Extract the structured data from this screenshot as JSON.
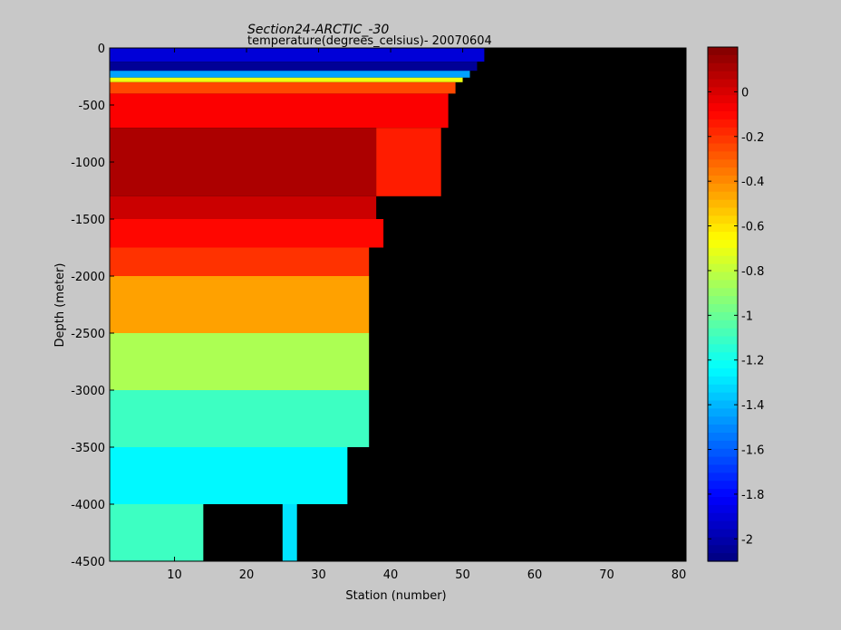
{
  "chart_data": {
    "type": "heatmap",
    "title": "Section24-ARCTIC_-30",
    "subtitle": "temperature(degrees_celsius)- 20070604",
    "xlabel": "Station (number)",
    "ylabel": "Depth (meter)",
    "xlim": [
      1,
      81
    ],
    "ylim": [
      -4500,
      0
    ],
    "x_ticks": [
      10,
      20,
      30,
      40,
      50,
      60,
      70,
      80
    ],
    "y_ticks": [
      0,
      -500,
      -1000,
      -1500,
      -2000,
      -2500,
      -3000,
      -3500,
      -4000,
      -4500
    ],
    "colorbar": {
      "range": [
        -2.1,
        0.2
      ],
      "ticks": [
        0,
        -0.2,
        -0.4,
        -0.6,
        -0.8,
        -1,
        -1.2,
        -1.4,
        -1.6,
        -1.8,
        -2
      ],
      "colormap": "jet"
    },
    "missing_color": "#000000",
    "grid": false,
    "station_bottom_depth": [
      {
        "x_range": [
          1,
          14
        ],
        "bottom": -4500
      },
      {
        "x_range": [
          14,
          25
        ],
        "bottom": -4000
      },
      {
        "x_range": [
          25,
          27
        ],
        "bottom": -4500
      },
      {
        "x_range": [
          27,
          34
        ],
        "bottom": -4000
      },
      {
        "x_range": [
          34,
          37
        ],
        "bottom": -3500
      },
      {
        "x_range": [
          37,
          38
        ],
        "bottom": -1750
      },
      {
        "x_range": [
          38,
          39
        ],
        "bottom": -1700
      },
      {
        "x_range": [
          39,
          41
        ],
        "bottom": -1300
      },
      {
        "x_range": [
          41,
          43
        ],
        "bottom": -1500
      },
      {
        "x_range": [
          43,
          45
        ],
        "bottom": -1300
      },
      {
        "x_range": [
          45,
          46
        ],
        "bottom": -1200
      },
      {
        "x_range": [
          46,
          47
        ],
        "bottom": -700
      },
      {
        "x_range": [
          47,
          48
        ],
        "bottom": -600
      },
      {
        "x_range": [
          48,
          49
        ],
        "bottom": -400
      },
      {
        "x_range": [
          49,
          50
        ],
        "bottom": -300
      },
      {
        "x_range": [
          50,
          51
        ],
        "bottom": -200
      },
      {
        "x_range": [
          51,
          52
        ],
        "bottom": -100
      },
      {
        "x_range": [
          52,
          53
        ],
        "bottom": -50
      }
    ],
    "temperature_layers": [
      {
        "depth": [
          0,
          -120
        ],
        "x_range": [
          1,
          53
        ],
        "value": -1.9
      },
      {
        "depth": [
          -120,
          -200
        ],
        "x_range": [
          1,
          52
        ],
        "value": -2.05
      },
      {
        "depth": [
          -200,
          -260
        ],
        "x_range": [
          1,
          51
        ],
        "value": -1.45
      },
      {
        "depth": [
          -260,
          -300
        ],
        "x_range": [
          1,
          50
        ],
        "value": -0.7
      },
      {
        "depth": [
          -300,
          -400
        ],
        "x_range": [
          1,
          49
        ],
        "value": -0.25
      },
      {
        "depth": [
          -400,
          -700
        ],
        "x_range": [
          1,
          48
        ],
        "value": -0.08
      },
      {
        "depth": [
          -700,
          -1300
        ],
        "x_range": [
          1,
          38
        ],
        "value": 0.1
      },
      {
        "depth": [
          -700,
          -1300
        ],
        "x_range": [
          38,
          47
        ],
        "value": -0.15
      },
      {
        "depth": [
          -1300,
          -1500
        ],
        "x_range": [
          1,
          38
        ],
        "value": 0.03
      },
      {
        "depth": [
          -1500,
          -1750
        ],
        "x_range": [
          1,
          39
        ],
        "value": -0.1
      },
      {
        "depth": [
          -1750,
          -2000
        ],
        "x_range": [
          1,
          37
        ],
        "value": -0.2
      },
      {
        "depth": [
          -2000,
          -2500
        ],
        "x_range": [
          1,
          37
        ],
        "value": -0.45
      },
      {
        "depth": [
          -2500,
          -3000
        ],
        "x_range": [
          1,
          37
        ],
        "value": -0.85
      },
      {
        "depth": [
          -3000,
          -3500
        ],
        "x_range": [
          1,
          37
        ],
        "value": -1.1
      },
      {
        "depth": [
          -3500,
          -4000
        ],
        "x_range": [
          1,
          34
        ],
        "value": -1.25
      },
      {
        "depth": [
          -4000,
          -4500
        ],
        "x_range": [
          1,
          14
        ],
        "value": -1.1
      },
      {
        "depth": [
          -4000,
          -4500
        ],
        "x_range": [
          25,
          27
        ],
        "value": -1.3
      }
    ]
  }
}
